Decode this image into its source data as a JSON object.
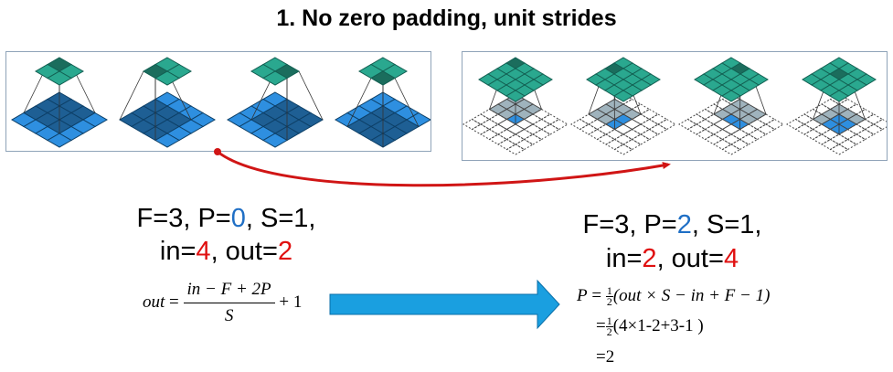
{
  "title": "1. No zero padding, unit strides",
  "left_params": {
    "line1": {
      "a": "F=3, P=",
      "p": "0",
      "b": ", S=1,"
    },
    "line2": {
      "a": "in=",
      "in": "4",
      "b": ", out=",
      "out": "2"
    }
  },
  "right_params": {
    "line1": {
      "a": "F=3, P=",
      "p": "2",
      "b": ", S=1,"
    },
    "line2": {
      "a": "in=",
      "in": "2",
      "b": ", out=",
      "out": "4"
    }
  },
  "left_formula": {
    "lhs": "out",
    "equals": "=",
    "numerator": "in − F + 2P",
    "denominator": "S",
    "tail": "+ 1"
  },
  "right_formula": {
    "line1_lhs": "P",
    "line1_eq": "=",
    "half_num": "1",
    "half_den": "2",
    "line1_rest": "(out × S − in + F − 1)",
    "line2_eq": "=",
    "line2_rest": "(4×1-2+3-1 )",
    "line3": "=2"
  },
  "colors": {
    "accent_blue": "#1f6fc5",
    "accent_red": "#e01010",
    "arrow_blue": "#1a9fe0",
    "arc_red": "#d01515",
    "input_dark": "#1e5f94",
    "input_light": "#2e8fe0",
    "output_teal": "#2aa88f"
  }
}
